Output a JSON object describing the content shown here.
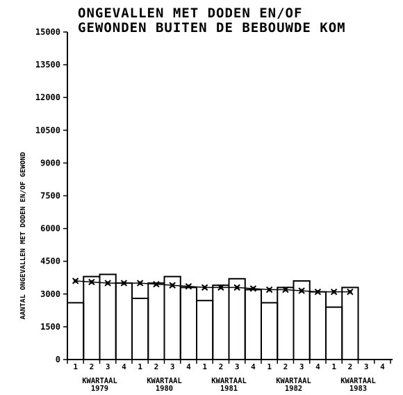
{
  "chart_data": {
    "type": "bar",
    "title_lines": [
      "ONGEVALLEN MET DODEN EN/OF",
      "GEWONDEN BUITEN DE BEBOUWDE KOM"
    ],
    "ylabel": "AANTAL ONGEVALLEN MET DODEN EN/OF GEWOND",
    "ylim": [
      0,
      15000
    ],
    "yticks": [
      0,
      1500,
      3000,
      4500,
      6000,
      7500,
      9000,
      10500,
      12000,
      13500,
      15000
    ],
    "xgroup_label": "KWARTAAL",
    "groups": [
      "1979",
      "1980",
      "1981",
      "1982",
      "1983"
    ],
    "quarters": [
      "1",
      "2",
      "3",
      "4"
    ],
    "series": [
      {
        "name": "observed",
        "values": [
          2600,
          3800,
          3900,
          3500,
          2800,
          3500,
          3800,
          3300,
          2700,
          3400,
          3700,
          3200,
          2600,
          3300,
          3600,
          3100,
          2400,
          3300
        ]
      },
      {
        "name": "trend",
        "values": [
          3600,
          3550,
          3500,
          3500,
          3500,
          3450,
          3400,
          3350,
          3300,
          3300,
          3300,
          3250,
          3200,
          3200,
          3150,
          3100,
          3100,
          3100
        ]
      }
    ]
  }
}
